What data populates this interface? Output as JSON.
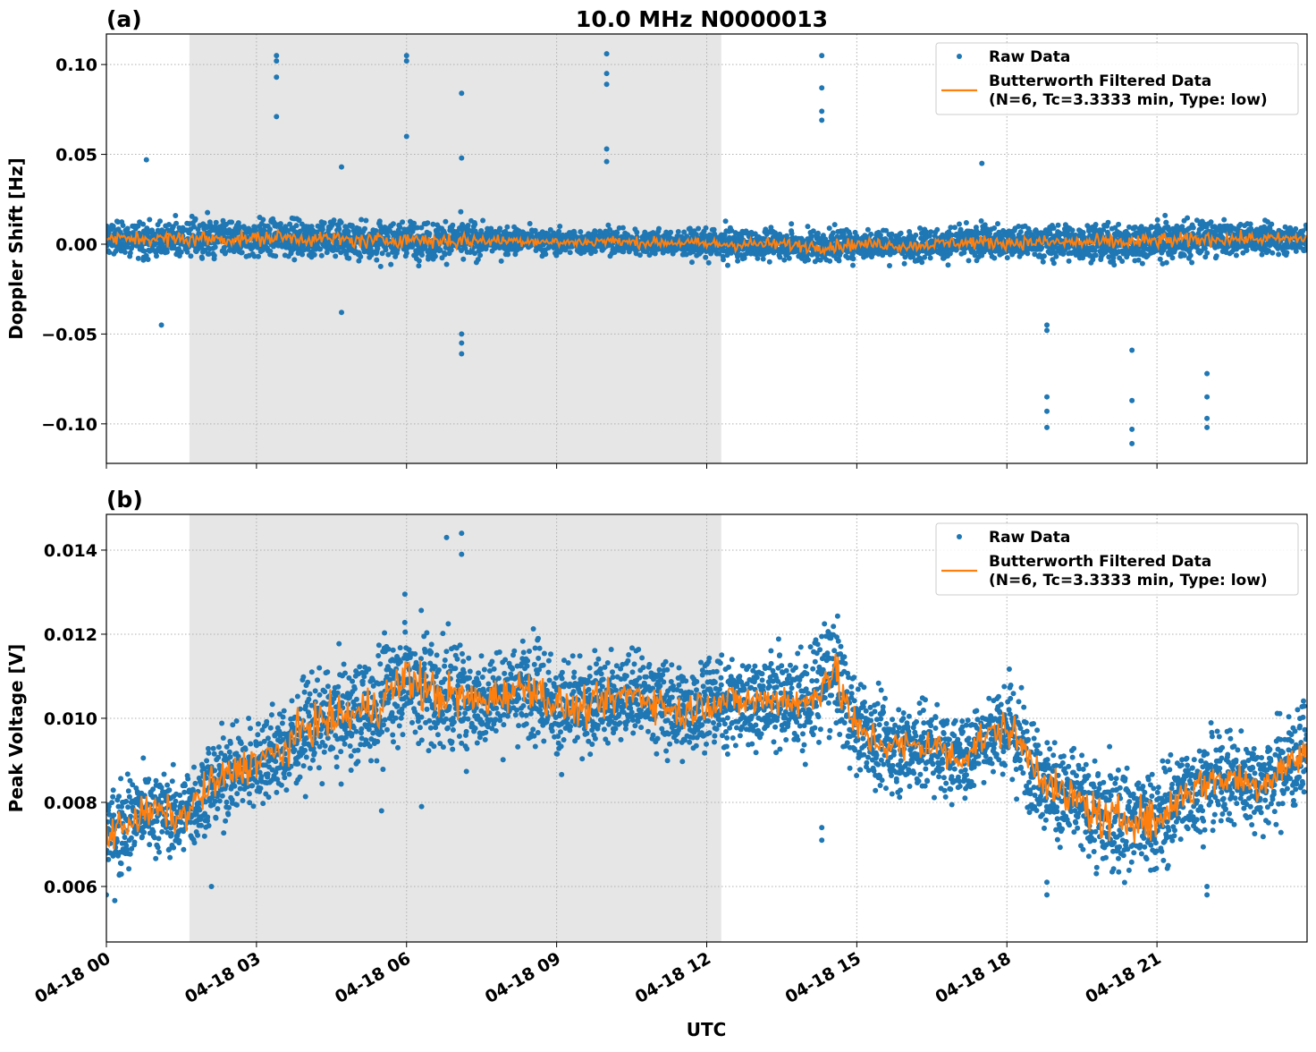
{
  "title": "10.0 MHz N0000013",
  "xlabel": "UTC",
  "colors": {
    "raw": "#1f77b4",
    "filtered": "#ff7f0e",
    "shade": "#e6e6e6",
    "grid": "#b0b0b0"
  },
  "x_ticks": [
    0,
    3,
    6,
    9,
    12,
    15,
    18,
    21
  ],
  "x_tick_labels": [
    "04-18 00",
    "04-18 03",
    "04-18 06",
    "04-18 09",
    "04-18 12",
    "04-18 15",
    "04-18 18",
    "04-18 21"
  ],
  "xlim_hours": [
    0,
    24
  ],
  "shaded_span_hours": [
    1.66,
    12.29
  ],
  "legend": {
    "raw": "Raw Data",
    "filtered_line1": "Butterworth Filtered Data",
    "filtered_line2": "(N=6, Tc=3.3333 min, Type: low)",
    "placement": "top-right"
  },
  "chart_data": [
    {
      "type": "scatter+line",
      "panel_label": "(a)",
      "ylabel": "Doppler Shift [Hz]",
      "ylim": [
        -0.122,
        0.117
      ],
      "y_ticks": [
        -0.1,
        -0.05,
        0.0,
        0.05,
        0.1
      ],
      "y_tick_labels": [
        "−0.10",
        "−0.05",
        "0.00",
        "0.05",
        "0.10"
      ],
      "grid": true,
      "filtered_hours": [
        0,
        0.5,
        1,
        1.5,
        2,
        2.5,
        3,
        3.5,
        4,
        4.5,
        5,
        5.5,
        6,
        6.5,
        7,
        7.5,
        8,
        8.5,
        9,
        9.5,
        10,
        10.5,
        11,
        11.5,
        12,
        12.5,
        13,
        13.5,
        14,
        14.5,
        15,
        15.5,
        16,
        16.5,
        17,
        17.5,
        18,
        18.5,
        19,
        19.5,
        20,
        20.5,
        21,
        21.5,
        22,
        22.5,
        23,
        23.5,
        24
      ],
      "filtered_values": [
        0.003,
        0.003,
        0.003,
        0.003,
        0.003,
        0.003,
        0.003,
        0.004,
        0.003,
        0.003,
        0.002,
        0.002,
        0.003,
        0.002,
        0.002,
        0.002,
        0.002,
        0.002,
        0.001,
        0.001,
        0.002,
        0.001,
        0.001,
        0.001,
        0.0,
        0.0,
        0.0,
        0.0,
        -0.001,
        -0.001,
        0.0,
        0.0,
        -0.001,
        0.0,
        0.001,
        0.001,
        0.001,
        0.001,
        0.001,
        0.001,
        0.001,
        0.001,
        0.002,
        0.002,
        0.003,
        0.003,
        0.003,
        0.003,
        0.003
      ],
      "raw_spread": [
        0.01,
        0.01,
        0.011,
        0.012,
        0.013,
        0.011,
        0.011,
        0.011,
        0.011,
        0.012,
        0.012,
        0.012,
        0.011,
        0.012,
        0.014,
        0.009,
        0.008,
        0.008,
        0.008,
        0.008,
        0.008,
        0.008,
        0.008,
        0.008,
        0.009,
        0.01,
        0.009,
        0.009,
        0.01,
        0.011,
        0.009,
        0.009,
        0.009,
        0.009,
        0.01,
        0.011,
        0.01,
        0.01,
        0.011,
        0.011,
        0.012,
        0.012,
        0.012,
        0.012,
        0.011,
        0.01,
        0.009,
        0.009,
        0.009
      ],
      "raw_outliers": [
        [
          3.4,
          0.105
        ],
        [
          3.4,
          0.102
        ],
        [
          3.4,
          0.093
        ],
        [
          3.4,
          0.071
        ],
        [
          6.0,
          0.105
        ],
        [
          6.0,
          0.102
        ],
        [
          6.0,
          0.06
        ],
        [
          7.1,
          0.084
        ],
        [
          7.1,
          0.048
        ],
        [
          7.1,
          -0.061
        ],
        [
          7.1,
          -0.055
        ],
        [
          7.1,
          -0.05
        ],
        [
          10.0,
          0.106
        ],
        [
          10.0,
          0.095
        ],
        [
          10.0,
          0.089
        ],
        [
          10.0,
          0.053
        ],
        [
          10.0,
          0.046
        ],
        [
          14.3,
          0.105
        ],
        [
          14.3,
          0.087
        ],
        [
          14.3,
          0.074
        ],
        [
          14.3,
          0.069
        ],
        [
          17.5,
          0.045
        ],
        [
          18.8,
          -0.045
        ],
        [
          18.8,
          -0.048
        ],
        [
          18.8,
          -0.085
        ],
        [
          18.8,
          -0.093
        ],
        [
          18.8,
          -0.102
        ],
        [
          20.5,
          -0.059
        ],
        [
          20.5,
          -0.087
        ],
        [
          20.5,
          -0.103
        ],
        [
          20.5,
          -0.111
        ],
        [
          22.0,
          -0.072
        ],
        [
          22.0,
          -0.085
        ],
        [
          22.0,
          -0.097
        ],
        [
          22.0,
          -0.102
        ],
        [
          0.8,
          0.047
        ],
        [
          1.1,
          -0.045
        ],
        [
          4.7,
          0.043
        ],
        [
          4.7,
          -0.038
        ]
      ]
    },
    {
      "type": "scatter+line",
      "panel_label": "(b)",
      "ylabel": "Peak Voltage [V]",
      "ylim": [
        0.00468,
        0.01485
      ],
      "y_ticks": [
        0.006,
        0.008,
        0.01,
        0.012,
        0.014
      ],
      "y_tick_labels": [
        "0.006",
        "0.008",
        "0.010",
        "0.012",
        "0.014"
      ],
      "grid": true,
      "filtered_hours": [
        0,
        0.5,
        1,
        1.5,
        2,
        2.5,
        3,
        3.5,
        4,
        4.5,
        5,
        5.5,
        6,
        6.5,
        7,
        7.5,
        8,
        8.5,
        9,
        9.5,
        10,
        10.5,
        11,
        11.5,
        12,
        12.5,
        13,
        13.5,
        14,
        14.5,
        15,
        15.5,
        16,
        16.5,
        17,
        17.5,
        18,
        18.5,
        19,
        19.5,
        20,
        20.5,
        21,
        21.5,
        22,
        22.5,
        23,
        23.5,
        24
      ],
      "filtered_values": [
        0.0072,
        0.0076,
        0.0078,
        0.0076,
        0.0083,
        0.0087,
        0.009,
        0.0092,
        0.0098,
        0.01,
        0.0101,
        0.0104,
        0.011,
        0.0106,
        0.0105,
        0.0104,
        0.0106,
        0.0108,
        0.0103,
        0.0102,
        0.0104,
        0.0106,
        0.0104,
        0.0101,
        0.0104,
        0.0104,
        0.0104,
        0.0105,
        0.0103,
        0.0112,
        0.0097,
        0.0094,
        0.0093,
        0.0094,
        0.009,
        0.0095,
        0.0098,
        0.009,
        0.0082,
        0.008,
        0.0075,
        0.0077,
        0.0075,
        0.0082,
        0.0085,
        0.0086,
        0.0084,
        0.0088,
        0.0092
      ],
      "raw_spread": [
        0.0012,
        0.0012,
        0.0011,
        0.0011,
        0.0013,
        0.0012,
        0.0012,
        0.0013,
        0.0013,
        0.0013,
        0.0014,
        0.0015,
        0.0016,
        0.0017,
        0.0015,
        0.0012,
        0.0012,
        0.0013,
        0.0013,
        0.0012,
        0.0012,
        0.0012,
        0.0012,
        0.0012,
        0.0012,
        0.0012,
        0.0012,
        0.0012,
        0.0013,
        0.0016,
        0.0013,
        0.0012,
        0.0012,
        0.0012,
        0.0012,
        0.0012,
        0.0012,
        0.0013,
        0.0013,
        0.0014,
        0.0015,
        0.0014,
        0.0014,
        0.0013,
        0.0012,
        0.0012,
        0.0012,
        0.0013,
        0.0013
      ],
      "raw_outliers": [
        [
          6.8,
          0.0143
        ],
        [
          7.1,
          0.0144
        ],
        [
          7.1,
          0.0139
        ],
        [
          14.3,
          0.0074
        ],
        [
          14.3,
          0.0071
        ],
        [
          18.8,
          0.0058
        ],
        [
          18.8,
          0.0061
        ],
        [
          22.0,
          0.0058
        ],
        [
          22.0,
          0.006
        ],
        [
          0.0,
          0.0058
        ],
        [
          2.1,
          0.006
        ],
        [
          5.5,
          0.0078
        ],
        [
          6.3,
          0.0079
        ]
      ]
    }
  ]
}
